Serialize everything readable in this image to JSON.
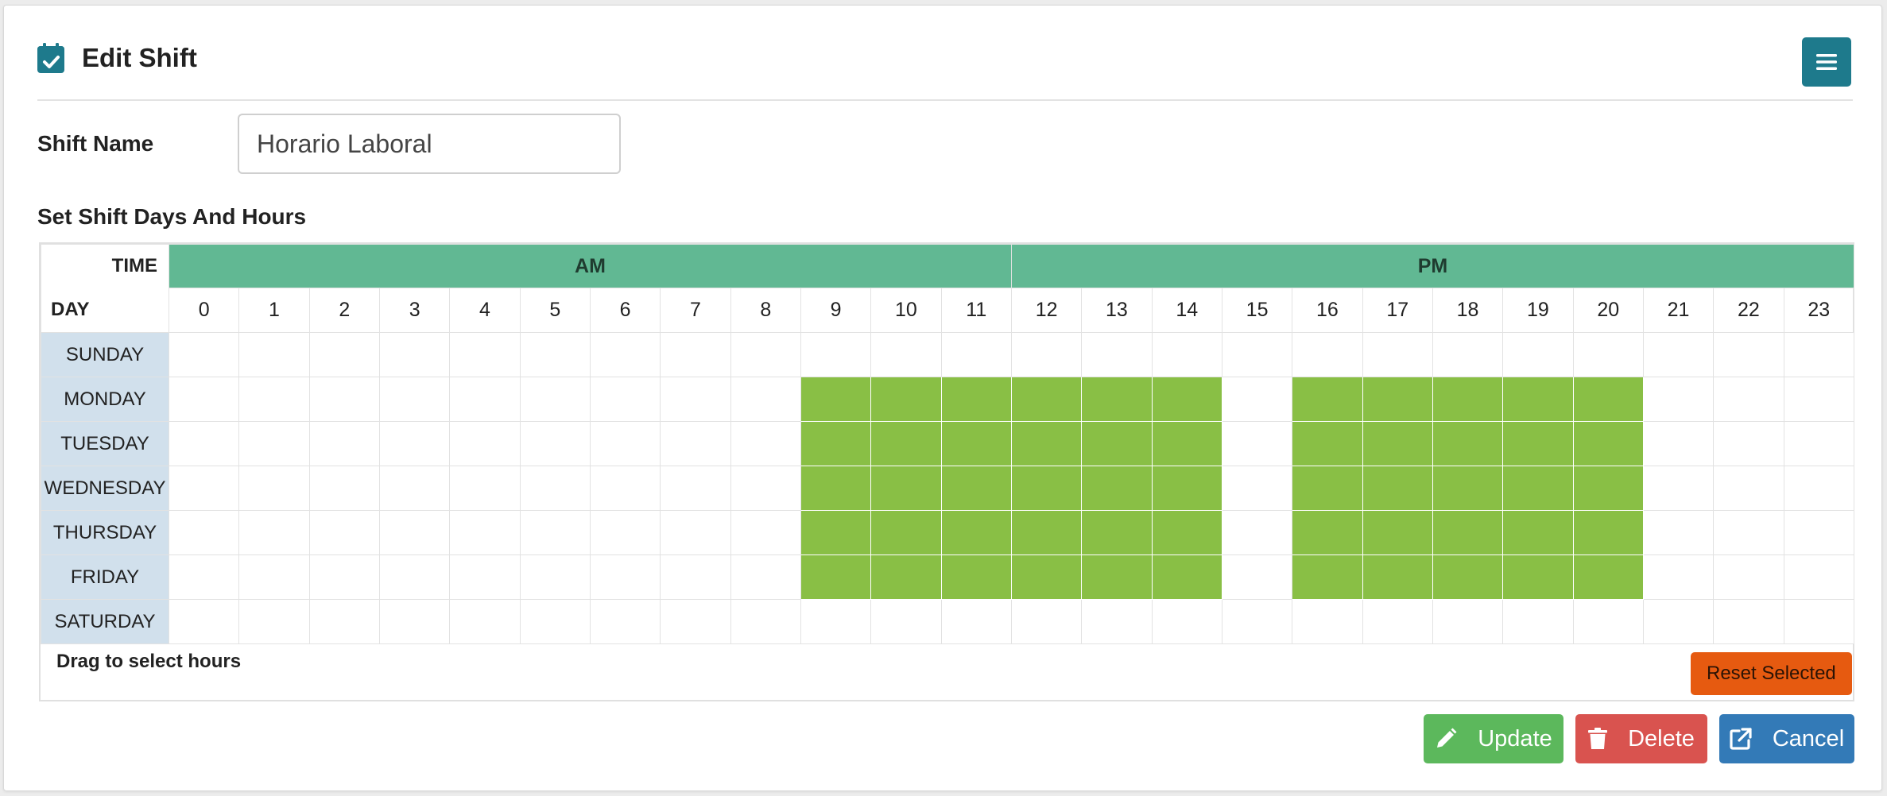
{
  "header": {
    "title": "Edit Shift",
    "icon": "calendar-check-icon",
    "menu_icon": "hamburger-menu-icon",
    "accent_color": "#1e7a8c"
  },
  "form": {
    "shift_name_label": "Shift Name",
    "shift_name_value": "Horario Laboral",
    "section_label": "Set Shift Days And Hours"
  },
  "grid": {
    "time_label": "TIME",
    "day_label": "DAY",
    "periods": [
      {
        "label": "AM",
        "hours": 12
      },
      {
        "label": "PM",
        "hours": 12
      }
    ],
    "hours": [
      "0",
      "1",
      "2",
      "3",
      "4",
      "5",
      "6",
      "7",
      "8",
      "9",
      "10",
      "11",
      "12",
      "13",
      "14",
      "15",
      "16",
      "17",
      "18",
      "19",
      "20",
      "21",
      "22",
      "23"
    ],
    "days": [
      {
        "name": "SUNDAY",
        "selected": []
      },
      {
        "name": "MONDAY",
        "selected": [
          9,
          10,
          11,
          12,
          13,
          14,
          16,
          17,
          18,
          19,
          20
        ]
      },
      {
        "name": "TUESDAY",
        "selected": [
          9,
          10,
          11,
          12,
          13,
          14,
          16,
          17,
          18,
          19,
          20
        ]
      },
      {
        "name": "WEDNESDAY",
        "selected": [
          9,
          10,
          11,
          12,
          13,
          14,
          16,
          17,
          18,
          19,
          20
        ]
      },
      {
        "name": "THURSDAY",
        "selected": [
          9,
          10,
          11,
          12,
          13,
          14,
          16,
          17,
          18,
          19,
          20
        ]
      },
      {
        "name": "FRIDAY",
        "selected": [
          9,
          10,
          11,
          12,
          13,
          14,
          16,
          17,
          18,
          19,
          20
        ]
      },
      {
        "name": "SATURDAY",
        "selected": []
      }
    ],
    "drag_hint": "Drag to select hours",
    "reset_label": "Reset Selected",
    "colors": {
      "period_header": "#61b893",
      "day_cell": "#d1e0ec",
      "selected_cell": "#89bf45",
      "reset_button": "#e65a10"
    }
  },
  "actions": {
    "update": {
      "label": "Update",
      "icon": "pencil-icon",
      "color": "#5cb85c"
    },
    "delete": {
      "label": "Delete",
      "icon": "trash-icon",
      "color": "#d9534f"
    },
    "cancel": {
      "label": "Cancel",
      "icon": "external-link-icon",
      "color": "#337ab7"
    }
  }
}
